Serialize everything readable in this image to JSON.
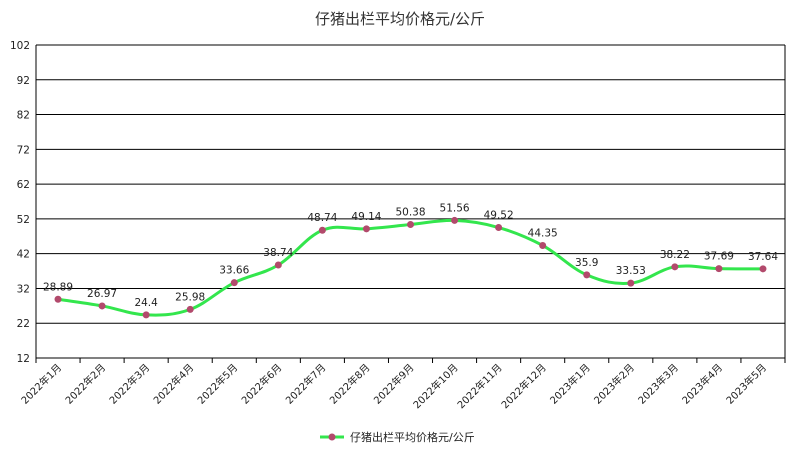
{
  "chart_data": {
    "type": "line",
    "title": "仔猪出栏平均价格元/公斤",
    "categories": [
      "2022年1月",
      "2022年2月",
      "2022年3月",
      "2022年4月",
      "2022年5月",
      "2022年6月",
      "2022年7月",
      "2022年8月",
      "2022年9月",
      "2022年10月",
      "2022年11月",
      "2022年12月",
      "2023年1月",
      "2023年2月",
      "2023年3月",
      "2023年4月",
      "2023年5月"
    ],
    "series": [
      {
        "name": "仔猪出栏平均价格元/公斤",
        "values": [
          28.89,
          26.97,
          24.4,
          25.98,
          33.66,
          38.74,
          48.74,
          49.14,
          50.38,
          51.56,
          49.52,
          44.35,
          35.9,
          33.53,
          38.22,
          37.69,
          37.64
        ],
        "labels": [
          "28.89",
          "26.97",
          "24.4",
          "25.98",
          "33.66",
          "38.74",
          "48.74",
          "49.14",
          "50.38",
          "51.56",
          "49.52",
          "44.35",
          "35.9",
          "33.53",
          "38.22",
          "37.69",
          "37.64"
        ]
      }
    ],
    "yticks": [
      12,
      22,
      32,
      42,
      52,
      62,
      72,
      82,
      92,
      102
    ],
    "ylim": [
      12,
      102
    ],
    "xlabel": "",
    "ylabel": "",
    "grid": true,
    "legend_position": "bottom",
    "colors": {
      "line": "#33e64d",
      "marker": "#b24a6c",
      "grid": "#000000"
    }
  }
}
